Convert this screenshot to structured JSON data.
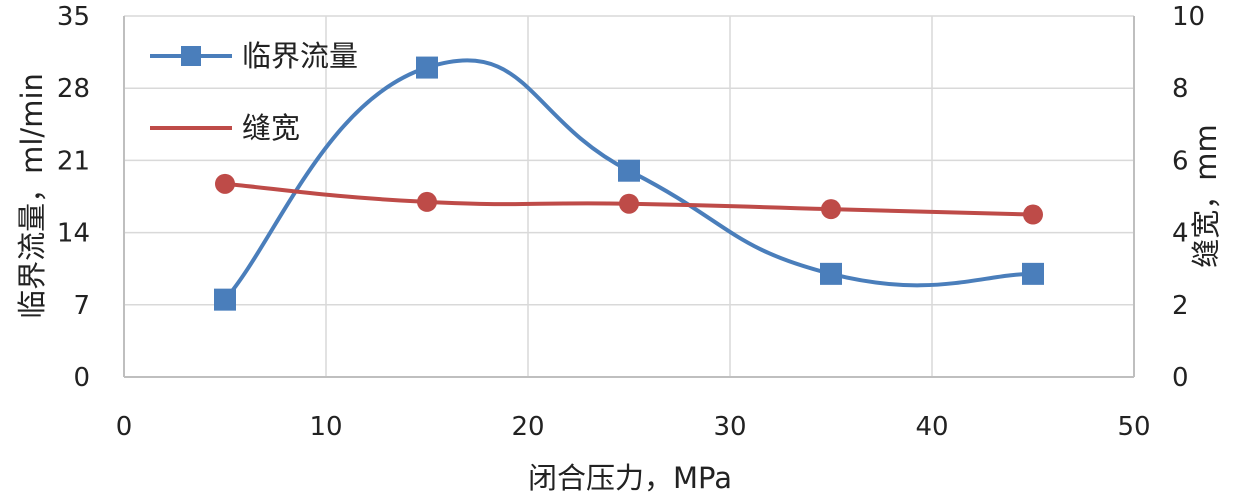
{
  "chart_data": {
    "type": "line",
    "x": [
      5,
      15,
      25,
      35,
      45
    ],
    "xlabel": "闭合压力，MPa",
    "ylabel": "临界流量，ml/min",
    "y2label": "缝宽，mm",
    "xlim": [
      0,
      50
    ],
    "ylim": [
      0,
      35
    ],
    "y2lim": [
      0,
      10
    ],
    "xticks": [
      0,
      10,
      20,
      30,
      40,
      50
    ],
    "yticks": [
      0,
      7,
      14,
      21,
      28,
      35
    ],
    "y2ticks": [
      0,
      2,
      4,
      6,
      8,
      10
    ],
    "grid": true,
    "legend_position": "top-left",
    "series": [
      {
        "name": "临界流量",
        "axis": "left",
        "values": [
          7.5,
          30,
          20,
          10,
          10
        ],
        "color": "#4a7ebb",
        "marker": "square",
        "smooth": true
      },
      {
        "name": "缝宽",
        "axis": "right",
        "values": [
          5.35,
          4.85,
          4.8,
          4.65,
          4.5
        ],
        "color": "#be4b48",
        "marker": "circle",
        "smooth": true
      }
    ]
  }
}
